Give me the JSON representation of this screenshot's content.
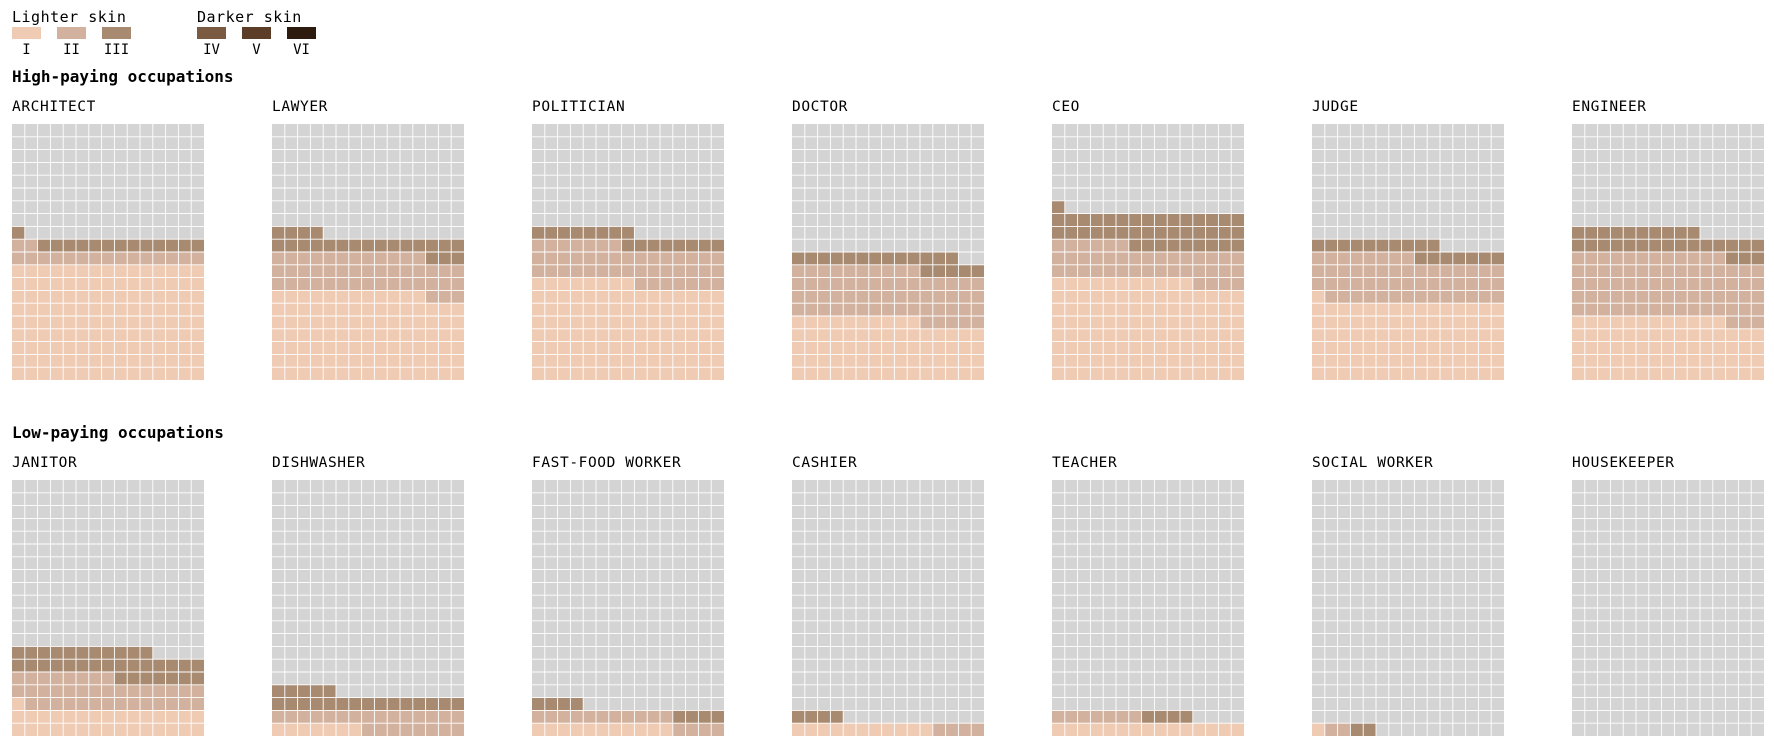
{
  "legend": {
    "lighter_label": "Lighter skin",
    "darker_label": "Darker skin",
    "types": [
      {
        "label": "I",
        "color": "#f0cbb4"
      },
      {
        "label": "II",
        "color": "#d2b29f"
      },
      {
        "label": "III",
        "color": "#a88a70"
      },
      {
        "label": "IV",
        "color": "#7a5a40"
      },
      {
        "label": "V",
        "color": "#5c3d27"
      },
      {
        "label": "VI",
        "color": "#2e1b10"
      }
    ]
  },
  "colors": {
    "empty": "#d4d4d4",
    "cell_border": "#ffffff"
  },
  "chart_data": {
    "type": "waffle",
    "grid": {
      "columns": 15,
      "rows": 20,
      "fill_order": "bottom-up, left-to-right"
    },
    "categories": [
      "I",
      "II",
      "III",
      "IV",
      "V",
      "VI"
    ],
    "groups": [
      {
        "title": "High-paying occupations",
        "panels": [
          {
            "title": "ARCHITECT",
            "counts": [
              135,
              17,
              14,
              0,
              0,
              0
            ]
          },
          {
            "title": "LAWYER",
            "counts": [
              102,
              45,
              22,
              0,
              0,
              0
            ]
          },
          {
            "title": "POLITICIAN",
            "counts": [
              113,
              44,
              16,
              0,
              0,
              0
            ]
          },
          {
            "title": "DOCTOR",
            "counts": [
              70,
              60,
              18,
              0,
              0,
              0
            ]
          },
          {
            "title": "CEO",
            "counts": [
              116,
              40,
              40,
              0,
              0,
              0
            ]
          },
          {
            "title": "JUDGE",
            "counts": [
              91,
              52,
              17,
              0,
              0,
              0
            ]
          },
          {
            "title": "ENGINEER",
            "counts": [
              72,
              75,
              28,
              0,
              0,
              0
            ]
          }
        ]
      },
      {
        "title": "Low-paying occupations",
        "panels": [
          {
            "title": "JANITOR",
            "counts": [
              31,
              37,
              33,
              0,
              0,
              0
            ]
          },
          {
            "title": "DISHWASHER",
            "counts": [
              7,
              23,
              20,
              0,
              0,
              0
            ]
          },
          {
            "title": "FAST-FOOD WORKER",
            "counts": [
              11,
              15,
              8,
              0,
              0,
              0
            ]
          },
          {
            "title": "CASHIER",
            "counts": [
              11,
              4,
              4,
              0,
              0,
              0
            ]
          },
          {
            "title": "TEACHER",
            "counts": [
              15,
              7,
              4,
              0,
              0,
              0
            ]
          },
          {
            "title": "SOCIAL WORKER",
            "counts": [
              1,
              2,
              2,
              0,
              0,
              0
            ]
          },
          {
            "title": "HOUSEKEEPER",
            "counts": [
              0,
              0,
              0,
              0,
              0,
              0
            ]
          }
        ]
      }
    ]
  }
}
